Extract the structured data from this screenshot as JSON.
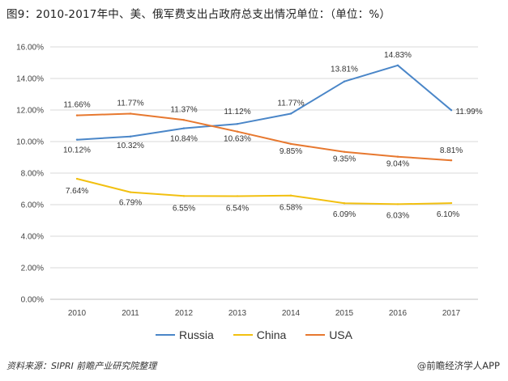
{
  "title": "图9：2010-2017年中、美、俄军费支出占政府总支出情况单位：（单位：%）",
  "source": "资料来源：SIPRI 前瞻产业研究院整理",
  "brand": "@前瞻经济学人APP",
  "colors": {
    "Russia": "#4a86c8",
    "China": "#f2c010",
    "USA": "#e7782f"
  },
  "chart_data": {
    "type": "line",
    "title": "2010-2017年中、美、俄军费支出占政府总支出情况",
    "xlabel": "",
    "ylabel": "",
    "x": [
      "2010",
      "2011",
      "2012",
      "2013",
      "2014",
      "2015",
      "2016",
      "2017"
    ],
    "ylim": [
      0,
      16
    ],
    "yticks": [
      "0.00%",
      "2.00%",
      "4.00%",
      "6.00%",
      "8.00%",
      "10.00%",
      "12.00%",
      "14.00%",
      "16.00%"
    ],
    "legend_position": "bottom",
    "series": [
      {
        "name": "Russia",
        "values": [
          10.12,
          10.32,
          10.84,
          11.12,
          11.77,
          13.81,
          14.83,
          11.99
        ],
        "labels": [
          "10.12%",
          "10.32%",
          "10.84%",
          "11.12%",
          "11.77%",
          "13.81%",
          "14.83%",
          "11.99%"
        ]
      },
      {
        "name": "China",
        "values": [
          7.64,
          6.79,
          6.55,
          6.54,
          6.58,
          6.09,
          6.03,
          6.1
        ],
        "labels": [
          "7.64%",
          "6.79%",
          "6.55%",
          "6.54%",
          "6.58%",
          "6.09%",
          "6.03%",
          "6.10%"
        ]
      },
      {
        "name": "USA",
        "values": [
          11.66,
          11.77,
          11.37,
          10.63,
          9.85,
          9.35,
          9.04,
          8.81
        ],
        "labels": [
          "11.66%",
          "11.77%",
          "11.37%",
          "10.63%",
          "9.85%",
          "9.35%",
          "9.04%",
          "8.81%"
        ]
      }
    ]
  }
}
